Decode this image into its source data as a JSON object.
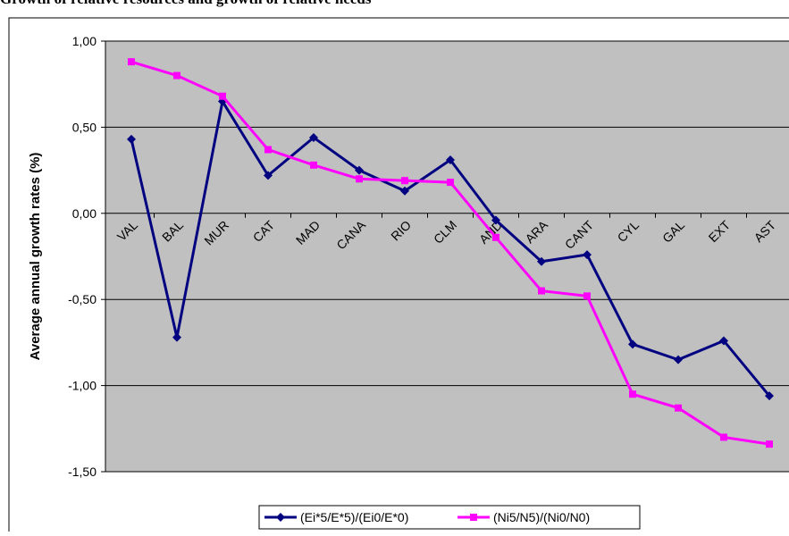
{
  "chart_data": {
    "type": "line",
    "title": "Growth of relative resources and growth of relative needs",
    "y_label": "Average annual growth rates (%)",
    "categories": [
      "VAL",
      "BAL",
      "MUR",
      "CAT",
      "MAD",
      "CANA",
      "RIO",
      "CLM",
      "AND",
      "ARA",
      "CANT",
      "CYL",
      "GAL",
      "EXT",
      "AST"
    ],
    "series": [
      {
        "name": "(Ei*5/E*5)/(Ei0/E*0)",
        "color": "#000080",
        "values": [
          0.43,
          -0.72,
          0.65,
          0.22,
          0.44,
          0.25,
          0.13,
          0.31,
          -0.04,
          -0.28,
          -0.24,
          -0.76,
          -0.85,
          -0.74,
          -1.06
        ]
      },
      {
        "name": "(Ni5/N5)/(Ni0/N0)",
        "color": "#ff00ff",
        "values": [
          0.88,
          0.8,
          0.68,
          0.37,
          0.28,
          0.2,
          0.19,
          0.18,
          -0.14,
          -0.45,
          -0.48,
          -1.05,
          -1.13,
          -1.3,
          -1.34
        ]
      }
    ],
    "ylim": [
      -1.5,
      1
    ],
    "yticks": [
      {
        "value": -1.5,
        "label": "-1,50"
      },
      {
        "value": -1,
        "label": "-1,00"
      },
      {
        "value": -0.5,
        "label": "-0,50"
      },
      {
        "value": 0,
        "label": "0,00"
      },
      {
        "value": 0.5,
        "label": "0,50"
      },
      {
        "value": 1,
        "label": "1,00"
      }
    ],
    "grid": true,
    "legend": "bottom"
  }
}
